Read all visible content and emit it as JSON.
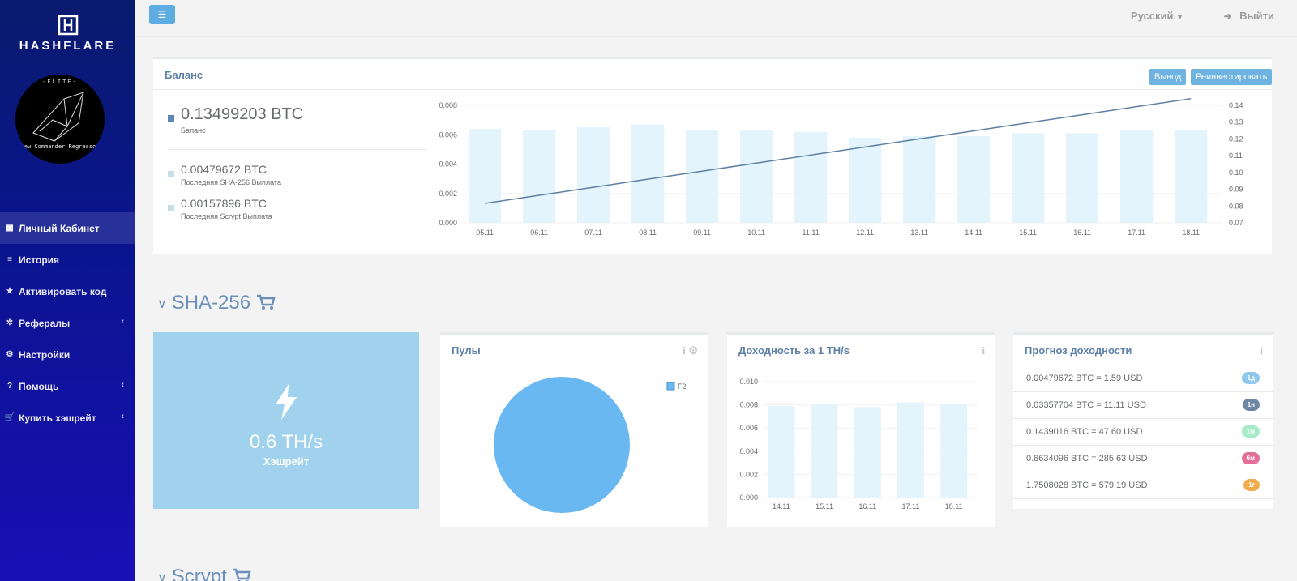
{
  "brand": {
    "name": "HASHFLARE"
  },
  "avatar": {
    "top_text": "-ELITE-",
    "bottom_text": "New Commander Regressor"
  },
  "sidebar": {
    "items": [
      {
        "label": "Личный Кабинет",
        "icon": "grid-icon",
        "active": true,
        "caret": false
      },
      {
        "label": "История",
        "icon": "list-icon",
        "active": false,
        "caret": false
      },
      {
        "label": "Активировать код",
        "icon": "star-icon",
        "active": false,
        "caret": false
      },
      {
        "label": "Рефералы",
        "icon": "network-icon",
        "active": false,
        "caret": true
      },
      {
        "label": "Настройки",
        "icon": "gears-icon",
        "active": false,
        "caret": false
      },
      {
        "label": "Помощь",
        "icon": "question-icon",
        "active": false,
        "caret": true
      },
      {
        "label": "Купить хэшрейт",
        "icon": "cart-icon",
        "active": false,
        "caret": true
      }
    ]
  },
  "topbar": {
    "menu_icon": "hamburger-icon",
    "language": "Русский",
    "logout": "Выйти"
  },
  "balance": {
    "title": "Баланс",
    "withdraw_label": "Вывод",
    "reinvest_label": "Реинвестировать",
    "main_value": "0.13499203 BTC",
    "main_label": "Баланс",
    "sha_value": "0.00479672 BTC",
    "sha_label": "Последняя SHA-256 Выплата",
    "scrypt_value": "0.00157896 BTC",
    "scrypt_label": "Последняя Scrypt Выплата",
    "colors": {
      "main": "#5e86b4",
      "sub": "#c9dde8"
    }
  },
  "sections": {
    "sha256": "SHA-256",
    "scrypt": "Scrypt"
  },
  "hashrate": {
    "value": "0.6 TH/s",
    "label": "Хэшрейт",
    "icon": "bolt-icon"
  },
  "pools": {
    "title": "Пулы",
    "legend": "F2",
    "info_icon": "info-icon",
    "settings_icon": "gear-icon"
  },
  "income": {
    "title": "Доходность за 1 TH/s",
    "info_icon": "info-icon"
  },
  "forecast": {
    "title": "Прогноз доходности",
    "info_icon": "info-icon",
    "items": [
      {
        "text": "0.00479672 BTC = 1.59 USD",
        "badge": "1д",
        "color": "#8fc7ea"
      },
      {
        "text": "0.03357704 BTC = 11.11 USD",
        "badge": "1н",
        "color": "#6c87a3"
      },
      {
        "text": "0.1439016 BTC = 47.60 USD",
        "badge": "1м",
        "color": "#a6ebc8"
      },
      {
        "text": "0.8634096 BTC = 285.63 USD",
        "badge": "6м",
        "color": "#e4709a"
      },
      {
        "text": "1.7508028 BTC = 579.19 USD",
        "badge": "1г",
        "color": "#f0ad4e"
      }
    ]
  },
  "chart_data": [
    {
      "type": "bar",
      "categories": [
        "05.11",
        "06.11",
        "07.11",
        "08.11",
        "09.11",
        "10.11",
        "11.11",
        "12.11",
        "13.11",
        "14.11",
        "15.11",
        "16.11",
        "17.11",
        "18.11"
      ],
      "series": [
        {
          "values": [
            0.0064,
            0.0063,
            0.0065,
            0.0067,
            0.0063,
            0.0063,
            0.0062,
            0.0058,
            0.0059,
            0.0059,
            0.0061,
            0.0061,
            0.0063,
            0.0063
          ],
          "color": "#e3f4fc",
          "axis": "left",
          "type": "bar"
        },
        {
          "values": [
            0.0816,
            0.0864,
            0.0912,
            0.096,
            0.1008,
            0.1056,
            0.1104,
            0.1152,
            0.12,
            0.1248,
            0.1296,
            0.1344,
            0.1392,
            0.144
          ],
          "color": "#5e7fa3",
          "axis": "right",
          "type": "line"
        }
      ],
      "ylim": [
        0,
        0.008
      ],
      "yticks": [
        "0.008",
        "0.006",
        "0.004",
        "0.002",
        "0.000"
      ],
      "y2lim": [
        0.07,
        0.14
      ],
      "y2ticks": [
        "0.14",
        "0.13",
        "0.12",
        "0.11",
        "0.10",
        "0.09",
        "0.08",
        "0.07"
      ],
      "grid": true
    },
    {
      "type": "pie",
      "slices": [
        {
          "name": "F2",
          "value": 100,
          "color": "#6ab8f2"
        }
      ]
    },
    {
      "type": "bar",
      "categories": [
        "14.11",
        "15.11",
        "16.11",
        "17.11",
        "18.11"
      ],
      "values": [
        0.0079,
        0.0081,
        0.0078,
        0.0082,
        0.0081
      ],
      "color": "#e3f4fc",
      "ylim": [
        0,
        0.01
      ],
      "yticks": [
        "0.010",
        "0.008",
        "0.006",
        "0.004",
        "0.002",
        "0.000"
      ],
      "grid": true
    }
  ]
}
